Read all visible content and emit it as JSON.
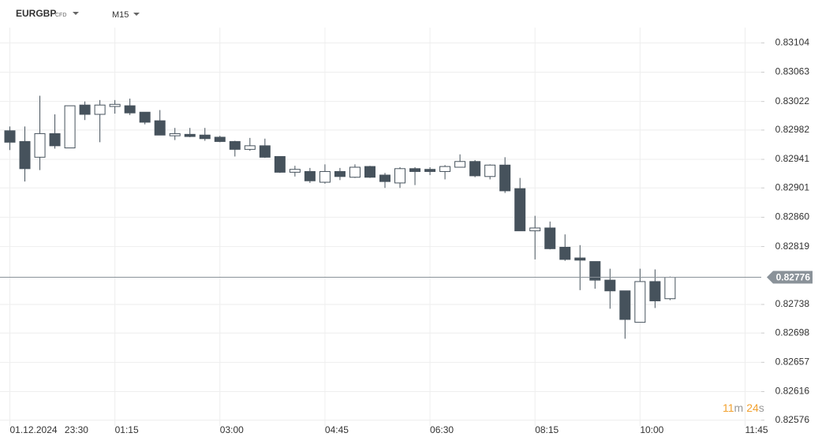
{
  "header": {
    "symbol": "EURGBP",
    "symbol_type": "CFD",
    "timeframe": "M15"
  },
  "chart_data": {
    "type": "candlestick",
    "categories": [
      "01.12.2024 23:30",
      null,
      null,
      null,
      null,
      null,
      null,
      "01:15",
      null,
      null,
      null,
      null,
      null,
      null,
      "03:00",
      null,
      null,
      null,
      null,
      null,
      null,
      "04:45",
      null,
      null,
      null,
      null,
      null,
      null,
      "06:30",
      null,
      null,
      null,
      null,
      null,
      null,
      "08:15",
      null,
      null,
      null,
      null,
      null,
      null,
      "10:00",
      null,
      null,
      null,
      null,
      null,
      null,
      "11:45",
      null
    ],
    "open": [
      0.82981,
      0.82966,
      0.82944,
      0.82977,
      0.82957,
      0.83017,
      0.83004,
      0.83015,
      0.83016,
      0.83007,
      0.82995,
      0.82974,
      0.82976,
      0.82975,
      0.82972,
      0.82966,
      0.82955,
      0.8296,
      0.82945,
      0.82923,
      0.82924,
      0.82909,
      0.82924,
      0.82916,
      0.82931,
      0.82919,
      0.82908,
      0.82928,
      0.82927,
      0.82924,
      0.8293,
      0.82938,
      0.82917,
      0.82933,
      0.829,
      0.82841,
      0.82845,
      0.82818,
      0.82803,
      0.82798,
      0.82772,
      0.82757,
      0.82713,
      0.8277,
      0.82746,
      null,
      null,
      null,
      null,
      null,
      null
    ],
    "high": [
      0.82987,
      0.82987,
      0.8303,
      0.83004,
      0.83016,
      0.83022,
      0.83024,
      0.83024,
      0.83026,
      0.83007,
      0.8301,
      0.82985,
      0.82985,
      0.82985,
      0.82974,
      0.82967,
      0.82971,
      0.8297,
      0.82945,
      0.82932,
      0.82929,
      0.82934,
      0.82929,
      0.82934,
      0.82932,
      0.82922,
      0.8293,
      0.8293,
      0.8293,
      0.82933,
      0.82948,
      0.8294,
      0.82934,
      0.82944,
      0.82915,
      0.82862,
      0.82854,
      0.82836,
      0.82821,
      0.82798,
      0.82788,
      0.82757,
      0.82788,
      0.82787,
      0.82777,
      null,
      null,
      null,
      null,
      null,
      null
    ],
    "low": [
      0.82954,
      0.8291,
      0.82926,
      0.82956,
      0.82957,
      0.82996,
      0.82965,
      0.83005,
      0.83003,
      0.8299,
      0.82975,
      0.82968,
      0.82972,
      0.82967,
      0.82965,
      0.82945,
      0.82953,
      0.82943,
      0.82922,
      0.82917,
      0.82908,
      0.82907,
      0.82912,
      0.82915,
      0.82915,
      0.82901,
      0.82901,
      0.82905,
      0.82919,
      0.82913,
      0.8293,
      0.82916,
      0.82913,
      0.82894,
      0.82841,
      0.82801,
      0.82815,
      0.82799,
      0.82758,
      0.8276,
      0.82732,
      0.8269,
      0.82713,
      0.82733,
      0.82744,
      null,
      null,
      null,
      null,
      null,
      null
    ],
    "close": [
      0.82965,
      0.82928,
      0.82977,
      0.8296,
      0.83016,
      0.83004,
      0.83017,
      0.83018,
      0.83006,
      0.82993,
      0.82975,
      0.82977,
      0.82973,
      0.8297,
      0.82966,
      0.82955,
      0.8296,
      0.82944,
      0.82923,
      0.82927,
      0.82911,
      0.82924,
      0.82917,
      0.8293,
      0.82916,
      0.8291,
      0.82928,
      0.82924,
      0.82924,
      0.82931,
      0.82938,
      0.82918,
      0.82933,
      0.82897,
      0.82841,
      0.82845,
      0.82816,
      0.82801,
      0.828,
      0.82772,
      0.82757,
      0.82717,
      0.8277,
      0.82743,
      0.82776,
      null,
      null,
      null,
      null,
      null,
      null
    ],
    "up_color": "#ffffff",
    "down_color": "#46525c",
    "wick_color": "#46525c",
    "ylim": [
      0.82568,
      0.83164
    ],
    "yticks": [
      0.83104,
      0.83063,
      0.83022,
      0.82982,
      0.82941,
      0.82901,
      {
        "value": 0.8286,
        "label": "0.82860"
      },
      0.82819,
      0.82738,
      0.82698,
      0.82657,
      0.82616,
      0.82576
    ],
    "last_price": 0.82776,
    "grid": true
  },
  "countdown": {
    "minutes": 11,
    "minutes_unit": "m",
    "seconds": 24,
    "seconds_unit": "s"
  }
}
